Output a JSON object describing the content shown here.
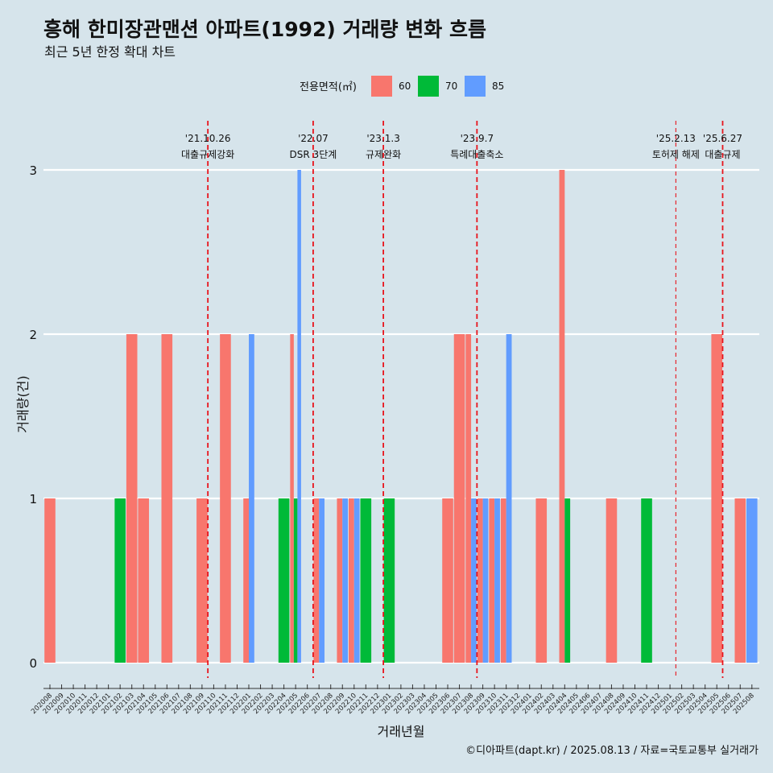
{
  "title": "흥해 한미장관맨션 아파트(1992) 거래량 변화 흐름",
  "subtitle": "최근 5년 한정 확대 차트",
  "caption": "©디아파트(dapt.kr) / 2025.08.13 / 자료=국토교통부 실거래가",
  "colors": {
    "background": "#d6e4eb",
    "60": "#f8766d",
    "70": "#00ba38",
    "85": "#619cff",
    "event_line": "#e8141c"
  },
  "chart_data": {
    "type": "bar",
    "xlabel": "거래년월",
    "ylabel": "거래량(건)",
    "ylim": [
      0,
      3
    ],
    "yticks": [
      0,
      1,
      2,
      3
    ],
    "legend": {
      "title": "전용면적(㎡)",
      "placement": "top"
    },
    "months": [
      "202008",
      "202009",
      "202010",
      "202011",
      "202012",
      "202101",
      "202102",
      "202103",
      "202104",
      "202105",
      "202106",
      "202107",
      "202108",
      "202109",
      "202110",
      "202111",
      "202112",
      "202201",
      "202202",
      "202203",
      "202204",
      "202205",
      "202206",
      "202207",
      "202208",
      "202209",
      "202210",
      "202211",
      "202212",
      "202301",
      "202302",
      "202303",
      "202304",
      "202305",
      "202306",
      "202307",
      "202308",
      "202309",
      "202310",
      "202311",
      "202312",
      "202401",
      "202402",
      "202403",
      "202404",
      "202405",
      "202406",
      "202407",
      "202408",
      "202409",
      "202410",
      "202411",
      "202412",
      "202501",
      "202502",
      "202503",
      "202504",
      "202505",
      "202506",
      "202507",
      "202508"
    ],
    "series": [
      {
        "name": "60",
        "data": [
          {
            "x": "202008",
            "y": 1
          },
          {
            "x": "202103",
            "y": 2
          },
          {
            "x": "202104",
            "y": 1
          },
          {
            "x": "202106",
            "y": 2
          },
          {
            "x": "202109",
            "y": 1
          },
          {
            "x": "202111",
            "y": 2
          },
          {
            "x": "202201",
            "y": 1
          },
          {
            "x": "202205",
            "y": 2
          },
          {
            "x": "202207",
            "y": 1
          },
          {
            "x": "202209",
            "y": 1
          },
          {
            "x": "202210",
            "y": 1
          },
          {
            "x": "202306",
            "y": 1
          },
          {
            "x": "202307",
            "y": 2
          },
          {
            "x": "202308",
            "y": 2
          },
          {
            "x": "202309",
            "y": 1
          },
          {
            "x": "202310",
            "y": 1
          },
          {
            "x": "202311",
            "y": 1
          },
          {
            "x": "202402",
            "y": 1
          },
          {
            "x": "202404",
            "y": 3
          },
          {
            "x": "202408",
            "y": 1
          },
          {
            "x": "202505",
            "y": 2
          },
          {
            "x": "202507",
            "y": 1
          }
        ]
      },
      {
        "name": "70",
        "data": [
          {
            "x": "202102",
            "y": 1
          },
          {
            "x": "202204",
            "y": 1
          },
          {
            "x": "202205",
            "y": 1
          },
          {
            "x": "202211",
            "y": 1
          },
          {
            "x": "202301",
            "y": 1
          },
          {
            "x": "202404",
            "y": 1
          },
          {
            "x": "202411",
            "y": 1
          }
        ]
      },
      {
        "name": "85",
        "data": [
          {
            "x": "202201",
            "y": 2
          },
          {
            "x": "202205",
            "y": 3
          },
          {
            "x": "202207",
            "y": 1
          },
          {
            "x": "202209",
            "y": 1
          },
          {
            "x": "202210",
            "y": 1
          },
          {
            "x": "202308",
            "y": 1
          },
          {
            "x": "202309",
            "y": 1
          },
          {
            "x": "202310",
            "y": 1
          },
          {
            "x": "202311",
            "y": 2
          },
          {
            "x": "202508",
            "y": 1
          }
        ]
      }
    ],
    "events": [
      {
        "month": "202110",
        "date_label": "'21.10.26",
        "text": "대출규제강화",
        "style": "dashed"
      },
      {
        "month": "202207",
        "date_label": "'22.07",
        "text": "DSR 3단계",
        "style": "dashed"
      },
      {
        "month": "202301",
        "date_label": "'23.1.3",
        "text": "규제완화",
        "style": "dashed"
      },
      {
        "month": "202309",
        "date_label": "'23.9.7",
        "text": "특례대출축소",
        "style": "dashed"
      },
      {
        "month": "202502",
        "date_label": "'25.2.13",
        "text": "토허제 해제",
        "style": "thin-dashed"
      },
      {
        "month": "202506",
        "date_label": "'25.6.27",
        "text": "대출규제",
        "style": "dashed"
      }
    ]
  }
}
